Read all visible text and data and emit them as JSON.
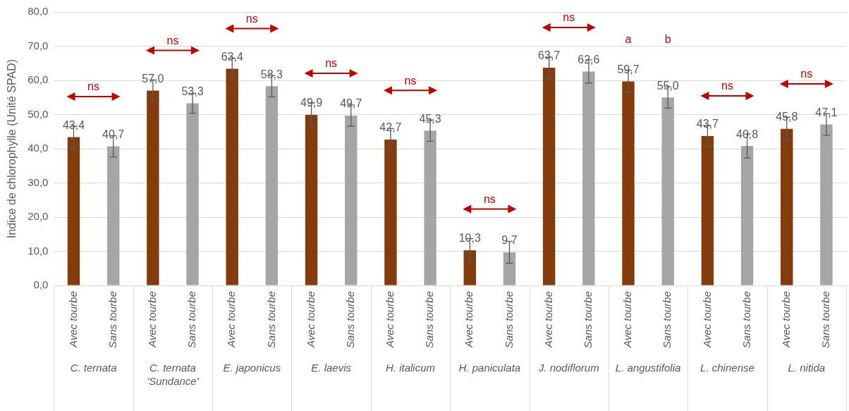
{
  "chart_data": {
    "type": "bar",
    "ylabel": "Indice de chlorophylle (Unité SPAD)",
    "categories": [
      "C. ternata",
      "C. ternata 'Sundance'",
      "E. japonicus",
      "E. laevis",
      "H. italicum",
      "H. paniculata",
      "J. nodiflorum",
      "L. angustifolia",
      "L. chinense",
      "L. nitida"
    ],
    "series": [
      {
        "name": "Avec tourbe",
        "color": "#843c0c",
        "values": [
          43.4,
          57.0,
          63.4,
          49.9,
          42.7,
          10.3,
          63.7,
          59.7,
          43.7,
          45.8
        ],
        "errors": [
          3.2,
          3.1,
          3.1,
          3.5,
          3.2,
          3.4,
          3.1,
          3.2,
          3.1,
          3.4
        ],
        "value_labels": [
          "43,4",
          "57,0",
          "63,4",
          "49,9",
          "42,7",
          "10,3",
          "63,7",
          "59,7",
          "43,7",
          "45,8"
        ]
      },
      {
        "name": "Sans tourbe",
        "color": "#a5a5a5",
        "values": [
          40.7,
          53.3,
          58.3,
          49.7,
          45.3,
          9.7,
          62.6,
          55.0,
          40.8,
          47.1
        ],
        "errors": [
          3.1,
          2.9,
          3.1,
          3.1,
          3.1,
          3.2,
          3.4,
          3.1,
          3.5,
          3.2
        ],
        "value_labels": [
          "40,7",
          "53,3",
          "58,3",
          "49,7",
          "45,3",
          "9,7",
          "62,6",
          "55,0",
          "40,8",
          "47,1"
        ]
      }
    ],
    "ylim": [
      0,
      80
    ],
    "yticks": [
      {
        "value": 0,
        "label": "0,0"
      },
      {
        "value": 10,
        "label": "10,0"
      },
      {
        "value": 20,
        "label": "20,0"
      },
      {
        "value": 30,
        "label": "30,0"
      },
      {
        "value": 40,
        "label": "40,0"
      },
      {
        "value": 50,
        "label": "50,0"
      },
      {
        "value": 60,
        "label": "60,0"
      },
      {
        "value": 70,
        "label": "70,0"
      },
      {
        "value": 80,
        "label": "80,0"
      }
    ],
    "grid": "y",
    "legend": false,
    "annotations": [
      "ns",
      "ns",
      "ns",
      "ns",
      "ns",
      "ns",
      "ns",
      "a",
      "b",
      "ns",
      "ns"
    ]
  }
}
